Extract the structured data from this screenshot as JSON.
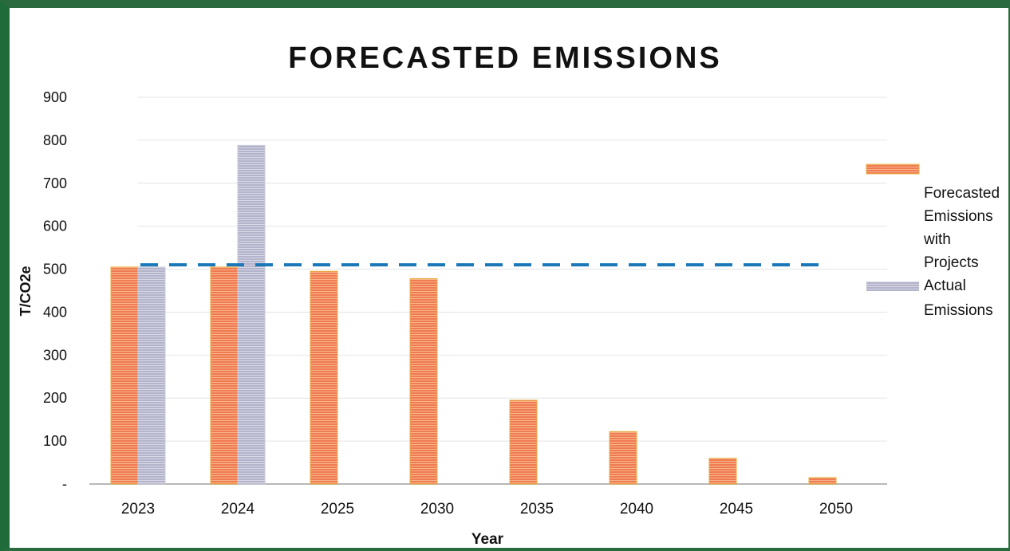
{
  "chart_data": {
    "type": "bar",
    "title": "FORECASTED EMISSIONS",
    "xlabel": "Year",
    "ylabel": "T/CO2e",
    "categories": [
      "2023",
      "2024",
      "2025",
      "2030",
      "2035",
      "2040",
      "2045",
      "2050"
    ],
    "series": [
      {
        "name": "Forecasted Emissions with Projects",
        "values": [
          505,
          505,
          495,
          478,
          195,
          122,
          60,
          15
        ],
        "color": "#f07850"
      },
      {
        "name": "Actual Emissions",
        "values": [
          505,
          788,
          null,
          null,
          null,
          null,
          null,
          null
        ],
        "color": "#b4b4cc"
      }
    ],
    "reference_line": {
      "value": 510,
      "style": "dashed",
      "color": "#1a78b8"
    },
    "ylim": [
      0,
      900
    ],
    "yticks": [
      0,
      100,
      200,
      300,
      400,
      500,
      600,
      700,
      800,
      900
    ],
    "ytick_labels": [
      "-",
      "100",
      "200",
      "300",
      "400",
      "500",
      "600",
      "700",
      "800",
      "900"
    ],
    "grid": true,
    "legend": {
      "placement": "right",
      "lines": [
        [
          "Forecasted",
          "Emissions",
          "with",
          "Projects"
        ],
        [
          "Actual",
          "Emissions"
        ]
      ]
    }
  }
}
